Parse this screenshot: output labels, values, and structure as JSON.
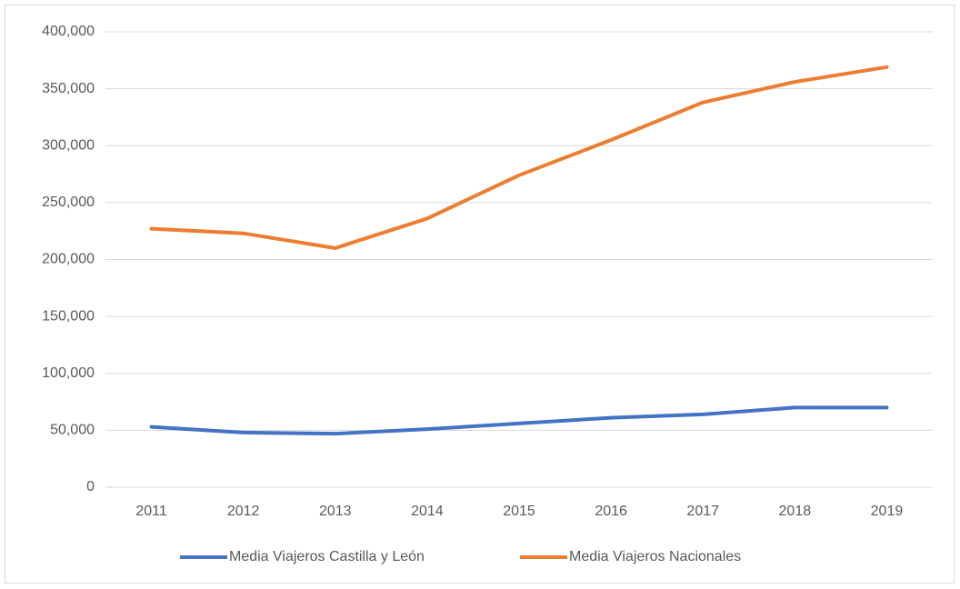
{
  "chart_data": {
    "type": "line",
    "categories": [
      "2011",
      "2012",
      "2013",
      "2014",
      "2015",
      "2016",
      "2017",
      "2018",
      "2019"
    ],
    "series": [
      {
        "name": "Media Viajeros Castilla y León",
        "color": "#4472c4",
        "values": [
          53000,
          48000,
          47000,
          51000,
          56000,
          61000,
          64000,
          70000,
          70000
        ]
      },
      {
        "name": "Media Viajeros Nacionales",
        "color": "#ed7d31",
        "values": [
          227000,
          223000,
          210000,
          236000,
          274000,
          305000,
          338000,
          356000,
          369000
        ]
      }
    ],
    "ylim": [
      0,
      400000
    ],
    "yticks": [
      0,
      {
        "value": 50000,
        "label": "50,000"
      },
      {
        "value": 100000,
        "label": "100,000"
      },
      {
        "value": 150000,
        "label": "150,000"
      },
      {
        "value": 200000,
        "label": "200,000"
      },
      {
        "value": 250000,
        "label": "250,000"
      },
      {
        "value": 300000,
        "label": "300,000"
      },
      {
        "value": 350000,
        "label": "350,000"
      },
      {
        "value": 400000,
        "label": "400,000"
      }
    ],
    "grid": true,
    "legend": "bottom"
  }
}
